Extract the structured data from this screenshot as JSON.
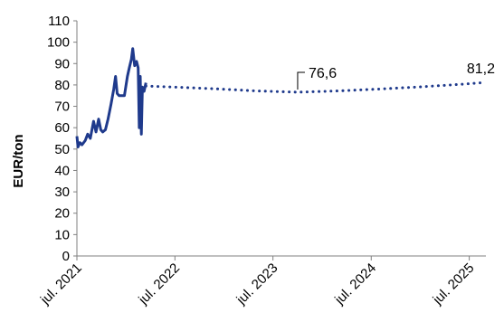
{
  "chart_data": {
    "type": "line",
    "ylabel": "EUR/ton",
    "ylim": [
      0,
      110
    ],
    "yticks": [
      0,
      10,
      20,
      30,
      40,
      50,
      60,
      70,
      80,
      90,
      100,
      110
    ],
    "x_range": [
      "2021-07-01",
      "2025-09-01"
    ],
    "xticks": [
      {
        "date": "2021-07-01",
        "label": "jul. 2021"
      },
      {
        "date": "2022-07-01",
        "label": "jul. 2022"
      },
      {
        "date": "2023-07-01",
        "label": "jul. 2023"
      },
      {
        "date": "2024-07-01",
        "label": "jul. 2024"
      },
      {
        "date": "2025-07-01",
        "label": "jul. 2025"
      }
    ],
    "series": [
      {
        "style": "solid",
        "color": "#1f3a8c",
        "points": [
          [
            "2021-07-01",
            56
          ],
          [
            "2021-07-05",
            51
          ],
          [
            "2021-07-12",
            53
          ],
          [
            "2021-07-20",
            52
          ],
          [
            "2021-08-01",
            54
          ],
          [
            "2021-08-10",
            57
          ],
          [
            "2021-08-20",
            55
          ],
          [
            "2021-09-01",
            63
          ],
          [
            "2021-09-10",
            58
          ],
          [
            "2021-09-20",
            64
          ],
          [
            "2021-09-28",
            59
          ],
          [
            "2021-10-05",
            58
          ],
          [
            "2021-10-15",
            59
          ],
          [
            "2021-10-25",
            64
          ],
          [
            "2021-11-05",
            71
          ],
          [
            "2021-11-15",
            78
          ],
          [
            "2021-11-22",
            84
          ],
          [
            "2021-11-28",
            76
          ],
          [
            "2021-12-05",
            75
          ],
          [
            "2021-12-15",
            75
          ],
          [
            "2021-12-25",
            75
          ],
          [
            "2022-01-05",
            84
          ],
          [
            "2022-01-12",
            88
          ],
          [
            "2022-01-20",
            92
          ],
          [
            "2022-01-25",
            97
          ],
          [
            "2022-02-01",
            89
          ],
          [
            "2022-02-08",
            91
          ],
          [
            "2022-02-14",
            88
          ],
          [
            "2022-02-18",
            60
          ],
          [
            "2022-02-22",
            84
          ],
          [
            "2022-02-26",
            57
          ],
          [
            "2022-03-02",
            79
          ],
          [
            "2022-03-08",
            77
          ],
          [
            "2022-03-15",
            81
          ]
        ]
      },
      {
        "style": "dotted",
        "color": "#1f3a8c",
        "points": [
          [
            "2022-03-15",
            79.5
          ],
          [
            "2022-07-01",
            79.0
          ],
          [
            "2022-12-01",
            78.2
          ],
          [
            "2023-05-01",
            77.2
          ],
          [
            "2023-10-01",
            76.6
          ],
          [
            "2024-03-01",
            77.2
          ],
          [
            "2024-08-01",
            78.1
          ],
          [
            "2025-01-01",
            79.1
          ],
          [
            "2025-06-01",
            80.3
          ],
          [
            "2025-09-01",
            81.2
          ]
        ]
      }
    ],
    "annotations": [
      {
        "date": "2023-10-01",
        "value": 76.6,
        "label": "76,6"
      },
      {
        "date": "2025-09-01",
        "value": 81.2,
        "label": "81,2"
      }
    ]
  }
}
